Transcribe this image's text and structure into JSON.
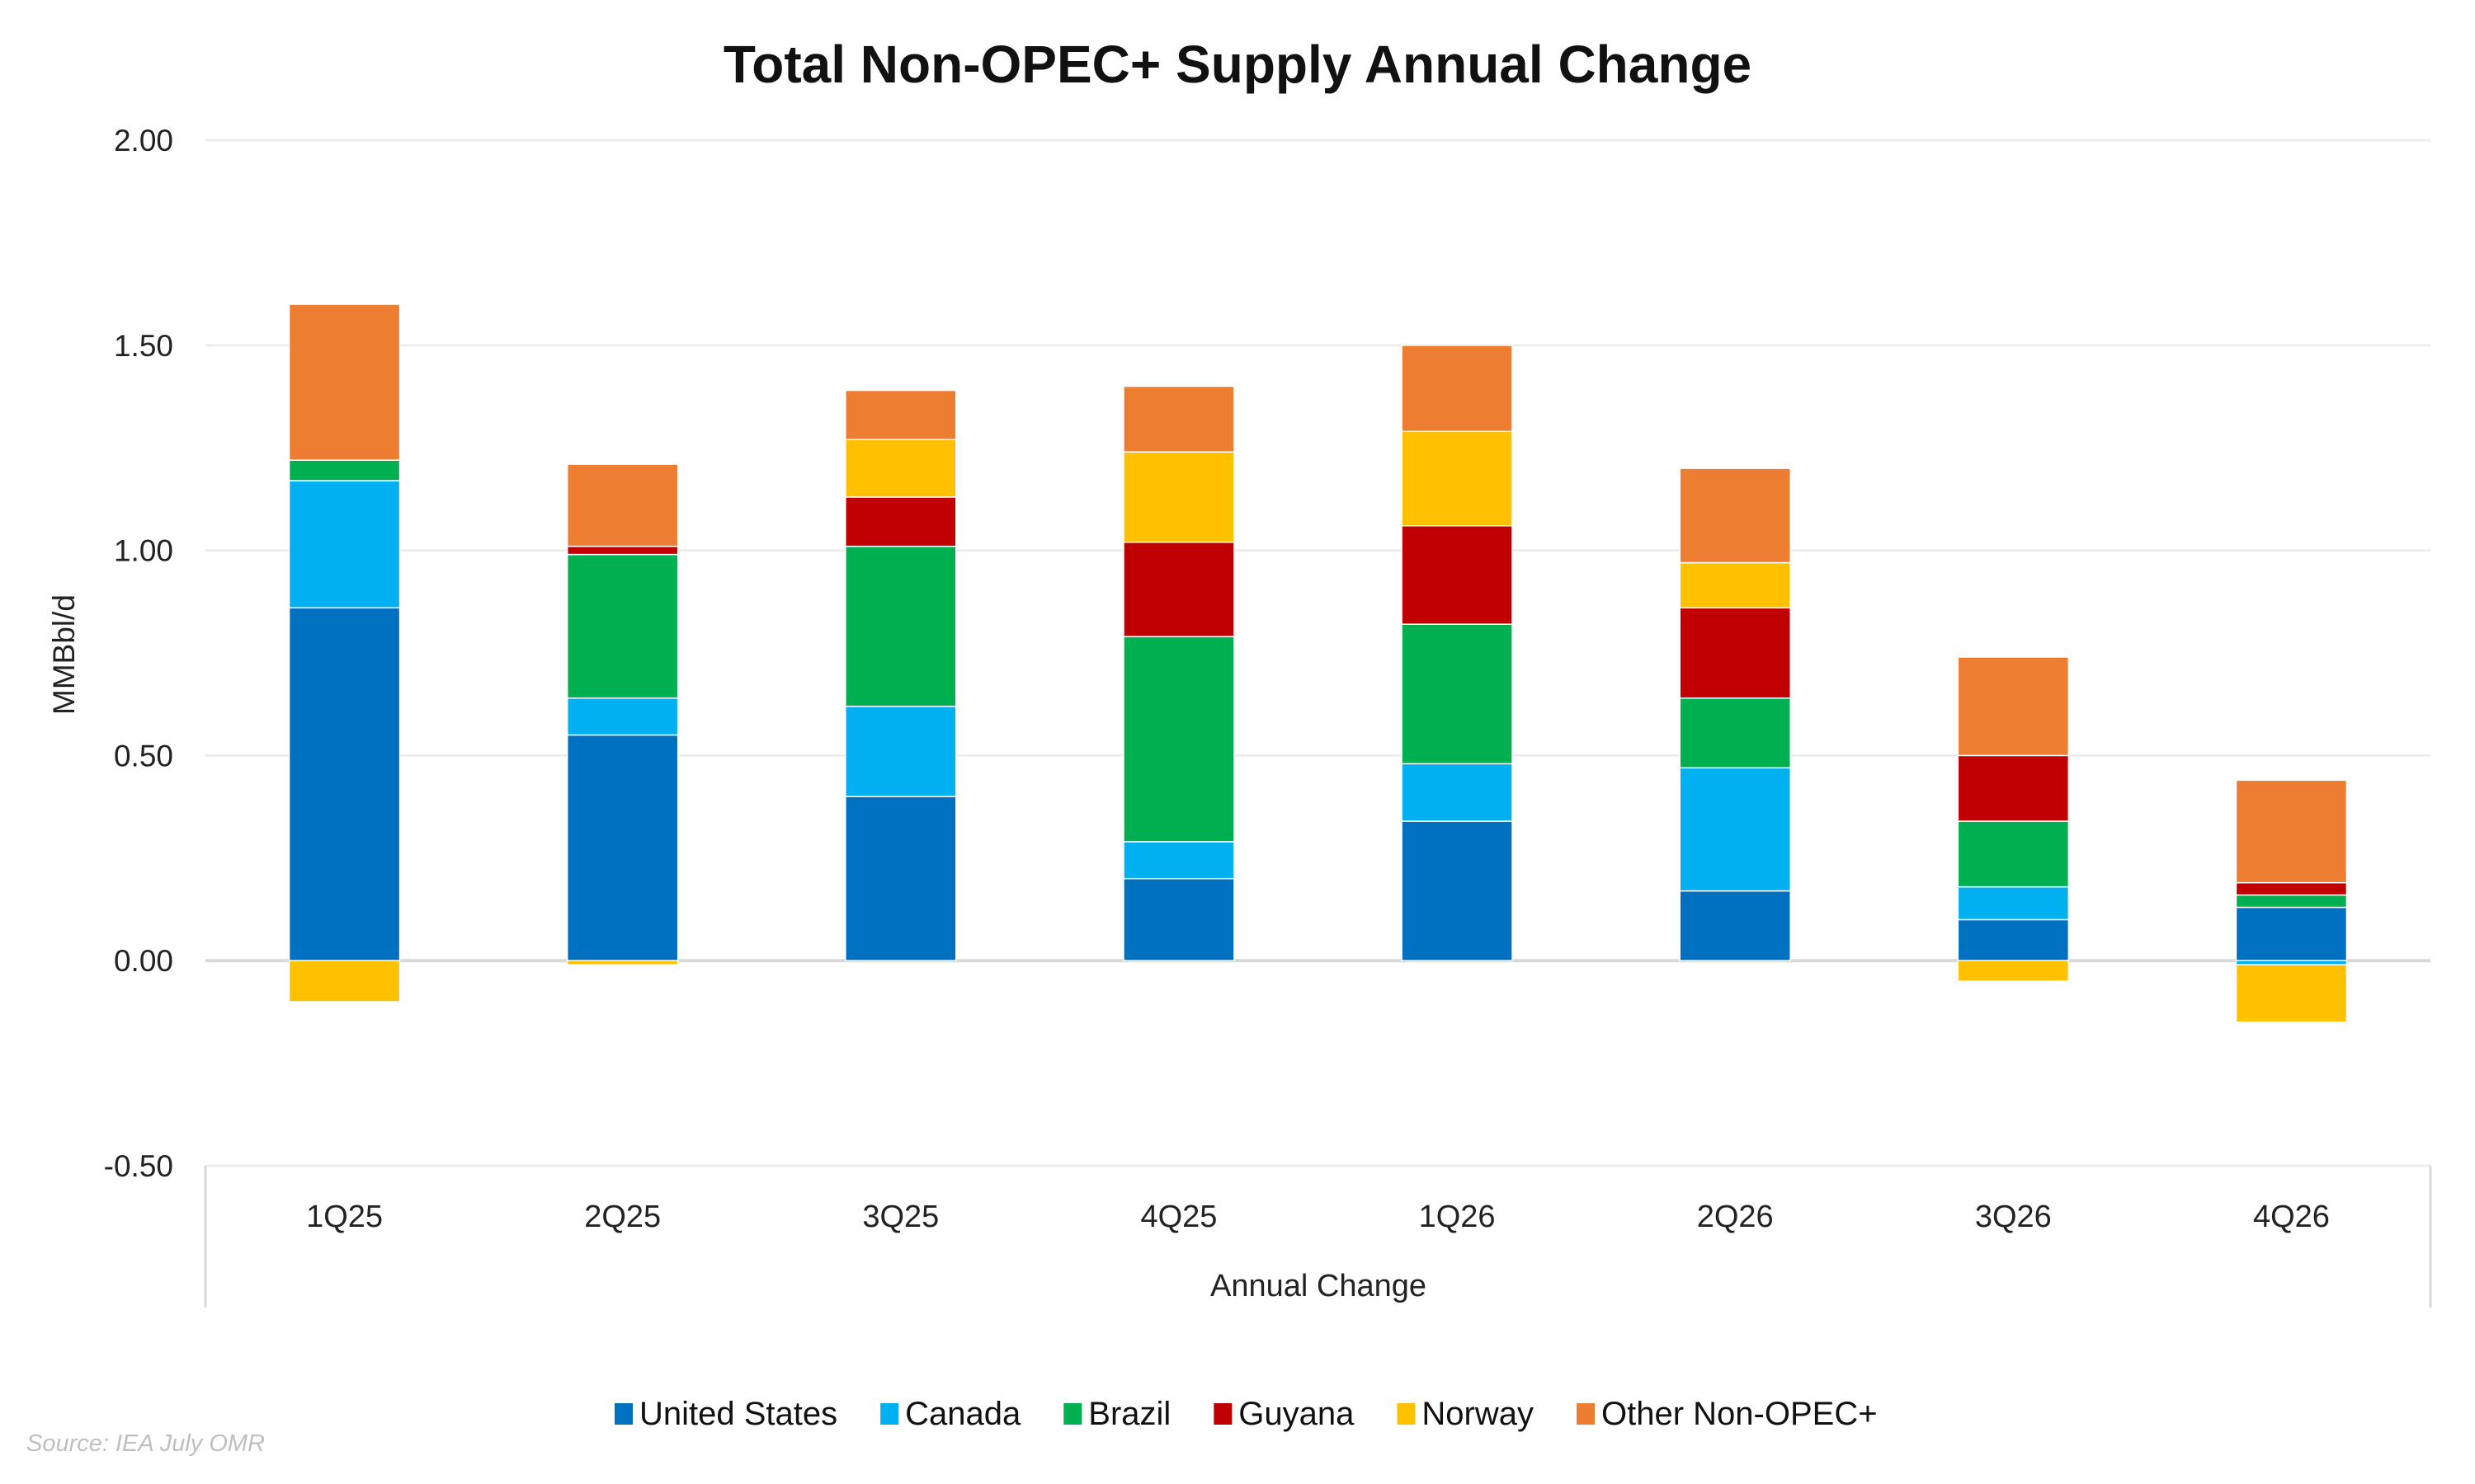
{
  "chart_data": {
    "type": "bar",
    "stacked": true,
    "title": "Total Non-OPEC+ Supply Annual Change",
    "xlabel": "Annual Change",
    "ylabel": "MMBbl/d",
    "ylim": [
      -0.5,
      2.0
    ],
    "yticks": [
      2.0,
      1.5,
      1.0,
      0.5,
      0.0,
      -0.5
    ],
    "ytick_labels": [
      "2.00",
      "1.50",
      "1.00",
      "0.50",
      "0.00",
      "-0.50"
    ],
    "grid": true,
    "legend_position": "bottom",
    "categories": [
      "1Q25",
      "2Q25",
      "3Q25",
      "4Q25",
      "1Q26",
      "2Q26",
      "3Q26",
      "4Q26"
    ],
    "series": [
      {
        "name": "United States",
        "color": "#0070C0",
        "values": [
          0.86,
          0.55,
          0.4,
          0.2,
          0.34,
          0.17,
          0.1,
          0.13
        ]
      },
      {
        "name": "Canada",
        "color": "#00B0F0",
        "values": [
          0.31,
          0.09,
          0.22,
          0.09,
          0.14,
          0.3,
          0.08,
          -0.01
        ]
      },
      {
        "name": "Brazil",
        "color": "#00B050",
        "values": [
          0.05,
          0.35,
          0.39,
          0.5,
          0.34,
          0.17,
          0.16,
          0.03
        ]
      },
      {
        "name": "Guyana",
        "color": "#C00000",
        "values": [
          0.0,
          0.02,
          0.12,
          0.23,
          0.24,
          0.22,
          0.16,
          0.03
        ]
      },
      {
        "name": "Norway",
        "color": "#FFC000",
        "values": [
          -0.1,
          -0.01,
          0.14,
          0.22,
          0.23,
          0.11,
          -0.05,
          -0.14
        ]
      },
      {
        "name": "Other Non-OPEC+",
        "color": "#ED7D31",
        "values": [
          0.38,
          0.2,
          0.12,
          0.16,
          0.21,
          0.23,
          0.24,
          0.25
        ]
      }
    ]
  },
  "source": "Source: IEA July OMR"
}
